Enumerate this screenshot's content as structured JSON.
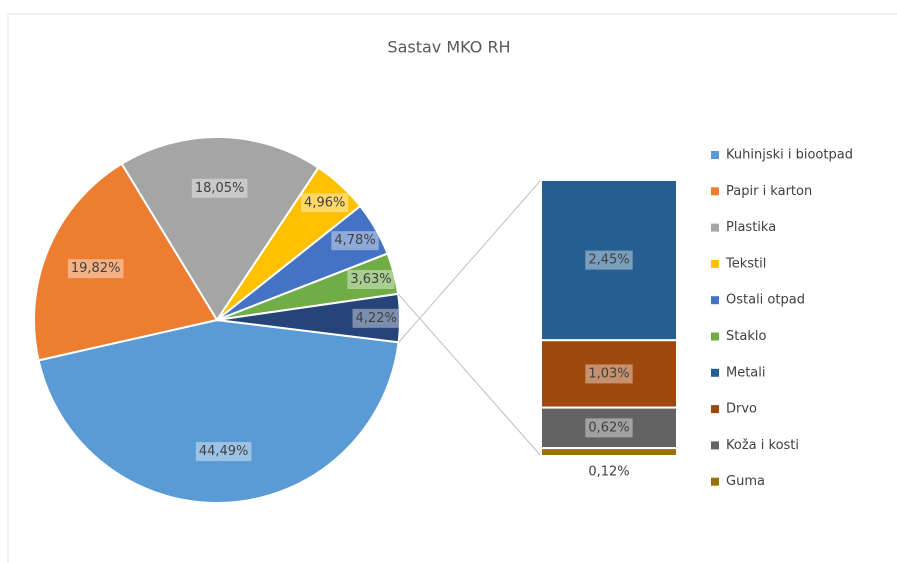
{
  "chart_data": {
    "type": "pie",
    "title": "Sastav MKO RH",
    "categories": [
      "Kuhinjski i biootpad",
      "Papir i karton",
      "Plastika",
      "Tekstil",
      "Ostali otpad",
      "Staklo",
      "Metali",
      "Drvo",
      "Koža i kosti",
      "Guma"
    ],
    "values": [
      44.49,
      19.82,
      18.05,
      4.96,
      4.78,
      3.63,
      2.45,
      1.03,
      0.62,
      0.12
    ],
    "value_labels": [
      "44,49%",
      "19,82%",
      "18,05%",
      "4,96%",
      "4,78%",
      "3,63%",
      "2,45%",
      "1,03%",
      "0,62%",
      "0,12%"
    ],
    "colors": [
      "#5b9bd5",
      "#ed7d31",
      "#a5a5a5",
      "#ffc000",
      "#4472c4",
      "#70ad47",
      "#255e91",
      "#9e480e",
      "#636363",
      "#997300"
    ],
    "pie_count": 6,
    "other_value": 4.22,
    "other_value_label": "4,22%",
    "other_color": "#264478",
    "legend": "right"
  }
}
